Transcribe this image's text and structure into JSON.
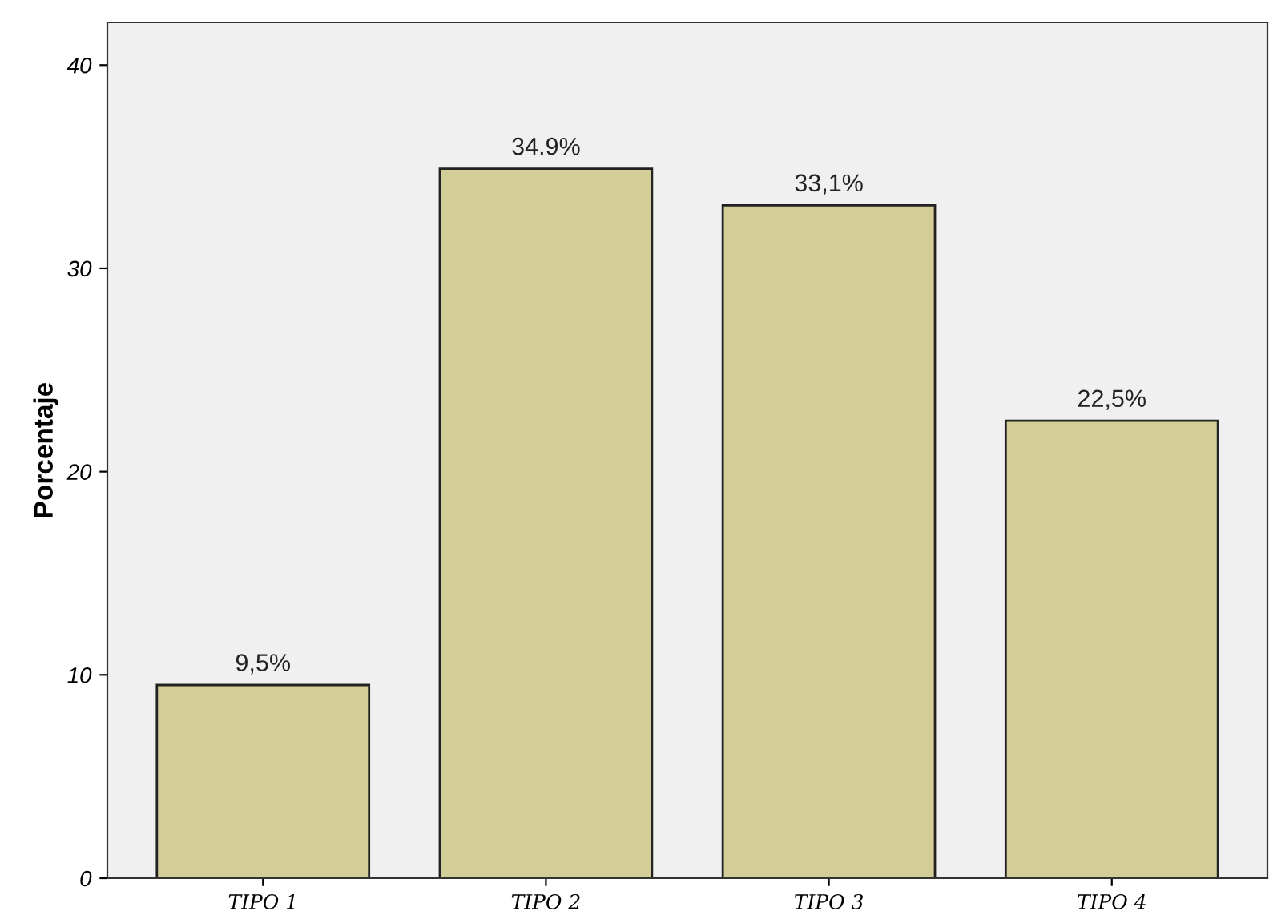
{
  "chart_data": {
    "type": "bar",
    "ylabel": "Porcentaje",
    "categories": [
      "TIPO 1",
      "TIPO 2",
      "TIPO 3",
      "TIPO 4"
    ],
    "values": [
      9.5,
      34.9,
      33.1,
      22.5
    ],
    "value_labels": [
      "9,5%",
      "34.9%",
      "33,1%",
      "22,5%"
    ],
    "color": "#d3ce98",
    "ylim": [
      0,
      42.1
    ],
    "yticks": [
      0,
      10,
      20,
      30,
      40
    ],
    "grid": false,
    "legend": false
  }
}
